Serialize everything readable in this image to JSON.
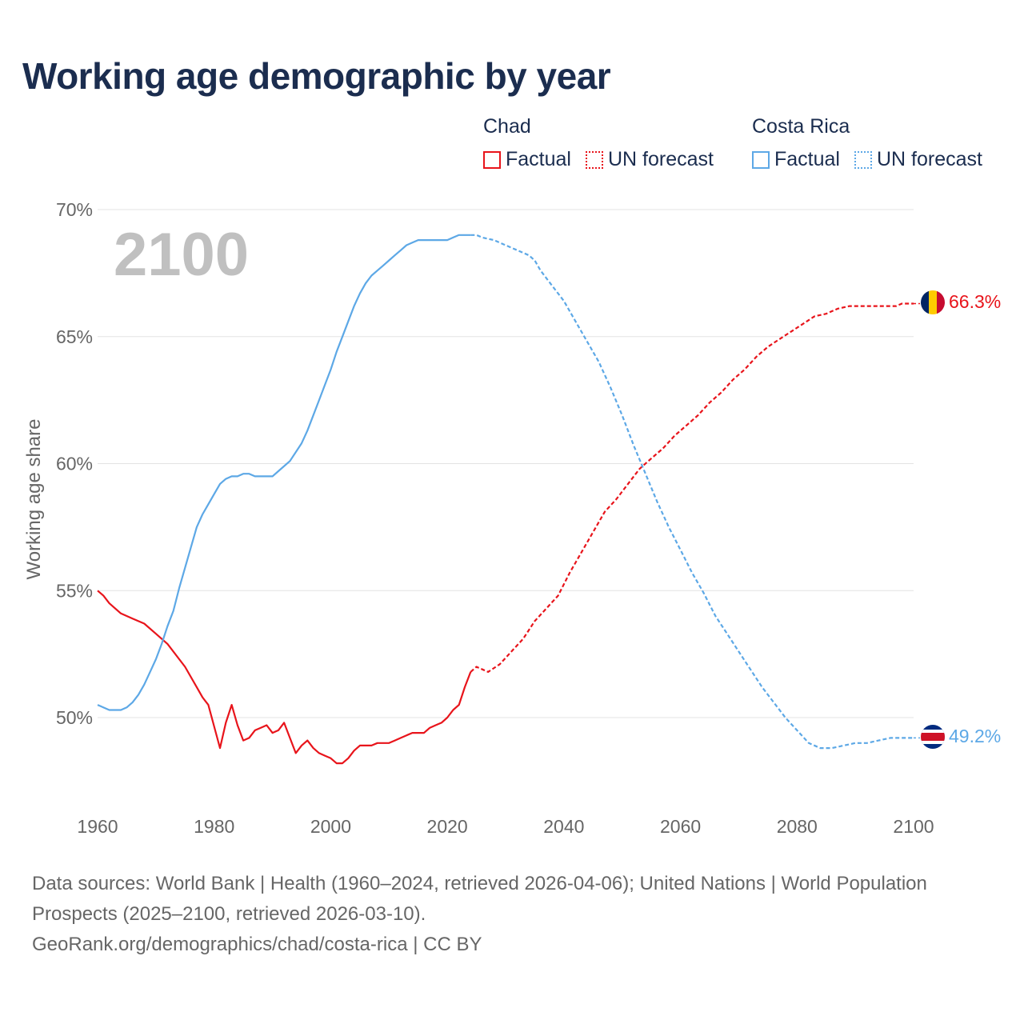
{
  "title": "Working age demographic by year",
  "year_badge": "2100",
  "legend": [
    {
      "country": "Chad",
      "factual_label": "Factual",
      "forecast_label": "UN forecast",
      "color": "#e8141b"
    },
    {
      "country": "Costa Rica",
      "factual_label": "Factual",
      "forecast_label": "UN forecast",
      "color": "#5da8e6"
    }
  ],
  "footer": {
    "sources": "Data sources: World Bank | Health (1960–2024, retrieved 2026-04-06); United Nations | World Population Prospects (2025–2100, retrieved 2026-03-10).",
    "credit": "GeoRank.org/demographics/chad/costa-rica | CC BY"
  },
  "chart_data": {
    "type": "line",
    "ylabel": "Working age share",
    "xlabel": "",
    "xlim": [
      1960,
      2100
    ],
    "ylim": [
      47,
      70
    ],
    "x_ticks": [
      1960,
      1980,
      2000,
      2020,
      2040,
      2060,
      2080,
      2100
    ],
    "x_tick_labels": [
      "1960",
      "1980",
      "2000",
      "2020",
      "2040",
      "2060",
      "2080",
      "2100"
    ],
    "y_ticks": [
      50,
      55,
      60,
      65,
      70
    ],
    "y_tick_labels": [
      "50%",
      "55%",
      "60%",
      "65%",
      "70%"
    ],
    "grid": true,
    "series": [
      {
        "name": "Chad",
        "color": "#e8141b",
        "end_label": "66.3%",
        "flag": "chad",
        "factual": {
          "x": [
            1960,
            1961,
            1962,
            1964,
            1966,
            1968,
            1970,
            1972,
            1975,
            1977,
            1978,
            1979,
            1981,
            1982,
            1983,
            1984,
            1985,
            1986,
            1987,
            1988,
            1989,
            1990,
            1991,
            1992,
            1993,
            1994,
            1995,
            1996,
            1997,
            1998,
            1999,
            2000,
            2001,
            2002,
            2003,
            2004,
            2005,
            2006,
            2007,
            2008,
            2009,
            2010,
            2011,
            2012,
            2013,
            2014,
            2015,
            2016,
            2017,
            2018,
            2019,
            2020,
            2021,
            2022,
            2023,
            2024
          ],
          "y": [
            55.0,
            54.8,
            54.5,
            54.1,
            53.9,
            53.7,
            53.3,
            52.9,
            52.0,
            51.2,
            50.8,
            50.5,
            48.8,
            49.8,
            50.5,
            49.7,
            49.1,
            49.2,
            49.5,
            49.6,
            49.7,
            49.4,
            49.5,
            49.8,
            49.2,
            48.6,
            48.9,
            49.1,
            48.8,
            48.6,
            48.5,
            48.4,
            48.2,
            48.2,
            48.4,
            48.7,
            48.9,
            48.9,
            48.9,
            49.0,
            49.0,
            49.0,
            49.1,
            49.2,
            49.3,
            49.4,
            49.4,
            49.4,
            49.6,
            49.7,
            49.8,
            50.0,
            50.3,
            50.5,
            51.2,
            51.8
          ]
        },
        "forecast": {
          "x": [
            2024,
            2025,
            2027,
            2029,
            2031,
            2033,
            2035,
            2037,
            2039,
            2041,
            2043,
            2045,
            2047,
            2049,
            2051,
            2053,
            2055,
            2057,
            2059,
            2061,
            2063,
            2065,
            2067,
            2069,
            2071,
            2073,
            2075,
            2077,
            2079,
            2081,
            2083,
            2085,
            2087,
            2089,
            2091,
            2093,
            2095,
            2097,
            2098,
            2100
          ],
          "y": [
            51.8,
            52.0,
            51.8,
            52.1,
            52.6,
            53.1,
            53.8,
            54.3,
            54.8,
            55.7,
            56.5,
            57.3,
            58.1,
            58.6,
            59.2,
            59.8,
            60.2,
            60.6,
            61.1,
            61.5,
            61.9,
            62.4,
            62.8,
            63.3,
            63.7,
            64.2,
            64.6,
            64.9,
            65.2,
            65.5,
            65.8,
            65.9,
            66.1,
            66.2,
            66.2,
            66.2,
            66.2,
            66.2,
            66.3,
            66.3
          ]
        }
      },
      {
        "name": "Costa Rica",
        "color": "#5da8e6",
        "end_label": "49.2%",
        "flag": "costa-rica",
        "factual": {
          "x": [
            1960,
            1962,
            1964,
            1965,
            1966,
            1967,
            1968,
            1969,
            1970,
            1971,
            1972,
            1973,
            1974,
            1975,
            1976,
            1977,
            1978,
            1979,
            1980,
            1981,
            1982,
            1983,
            1984,
            1985,
            1986,
            1987,
            1988,
            1989,
            1990,
            1991,
            1993,
            1995,
            1996,
            1997,
            1998,
            1999,
            2000,
            2001,
            2002,
            2003,
            2004,
            2005,
            2006,
            2007,
            2008,
            2009,
            2010,
            2011,
            2012,
            2013,
            2014,
            2015,
            2016,
            2017,
            2018,
            2019,
            2020,
            2021,
            2022,
            2023,
            2024
          ],
          "y": [
            50.5,
            50.3,
            50.3,
            50.4,
            50.6,
            50.9,
            51.3,
            51.8,
            52.3,
            52.9,
            53.6,
            54.2,
            55.1,
            55.9,
            56.7,
            57.5,
            58.0,
            58.4,
            58.8,
            59.2,
            59.4,
            59.5,
            59.5,
            59.6,
            59.6,
            59.5,
            59.5,
            59.5,
            59.5,
            59.7,
            60.1,
            60.8,
            61.3,
            61.9,
            62.5,
            63.1,
            63.7,
            64.4,
            65.0,
            65.6,
            66.2,
            66.7,
            67.1,
            67.4,
            67.6,
            67.8,
            68.0,
            68.2,
            68.4,
            68.6,
            68.7,
            68.8,
            68.8,
            68.8,
            68.8,
            68.8,
            68.8,
            68.9,
            69.0,
            69.0,
            69.0
          ]
        },
        "forecast": {
          "x": [
            2024,
            2025,
            2026,
            2028,
            2030,
            2032,
            2034,
            2035,
            2036,
            2038,
            2040,
            2042,
            2044,
            2046,
            2048,
            2050,
            2052,
            2054,
            2056,
            2058,
            2060,
            2062,
            2064,
            2066,
            2068,
            2070,
            2072,
            2074,
            2076,
            2078,
            2080,
            2082,
            2084,
            2085,
            2086,
            2088,
            2090,
            2092,
            2094,
            2096,
            2098,
            2100
          ],
          "y": [
            69.0,
            69.0,
            68.9,
            68.8,
            68.6,
            68.4,
            68.2,
            68.0,
            67.6,
            67.0,
            66.4,
            65.6,
            64.8,
            64.0,
            63.0,
            61.9,
            60.7,
            59.6,
            58.5,
            57.5,
            56.6,
            55.7,
            54.9,
            54.0,
            53.3,
            52.6,
            51.9,
            51.2,
            50.6,
            50.0,
            49.5,
            49.0,
            48.8,
            48.8,
            48.8,
            48.9,
            49.0,
            49.0,
            49.1,
            49.2,
            49.2,
            49.2
          ]
        }
      }
    ]
  }
}
